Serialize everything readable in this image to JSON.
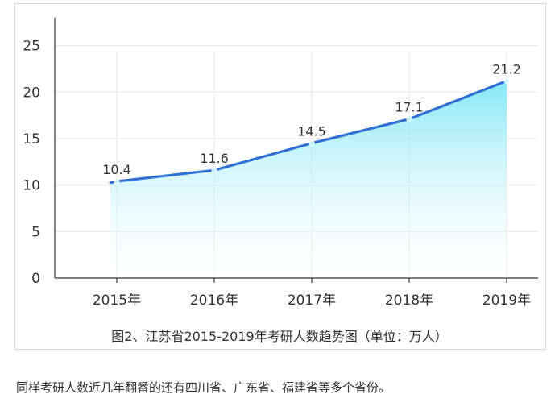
{
  "chart_data": {
    "type": "area",
    "title": "图2、江苏省2015-2019年考研人数趋势图（单位：万人）",
    "categories": [
      "2015年",
      "2016年",
      "2017年",
      "2018年",
      "2019年"
    ],
    "values": [
      10.4,
      11.6,
      14.5,
      17.1,
      21.2
    ],
    "ylim": [
      0,
      28
    ],
    "yticks": [
      0,
      5,
      10,
      15,
      20,
      25
    ],
    "grid": true,
    "colors": {
      "line": "#2f6fd6",
      "fill_top": "#7ee6f6",
      "fill_bottom": "#ffffff",
      "grid": "#e6e6e6",
      "axis": "#333333"
    }
  },
  "body_text": "同样考研人数近几年翻番的还有四川省、广东省、福建省等多个省份。"
}
